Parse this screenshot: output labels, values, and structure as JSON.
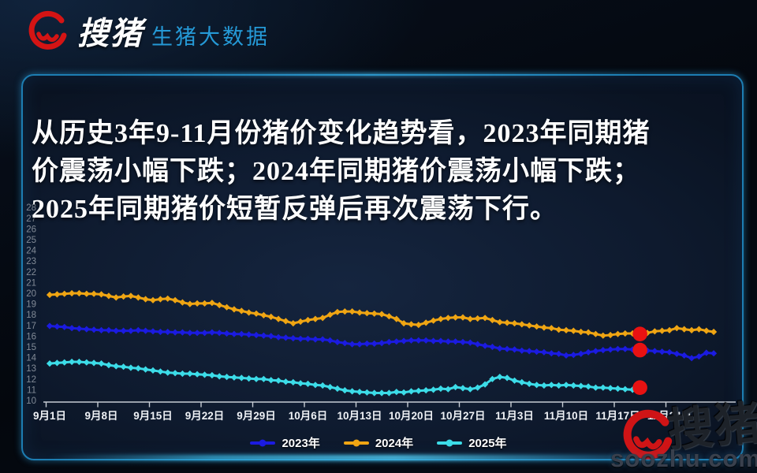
{
  "header": {
    "brand": "搜猪",
    "product": "生猪大数据"
  },
  "headline": {
    "lines": [
      "从历史3年9-11月份猪价变化趋势看，2023年同期猪",
      "价震荡小幅下跌；2024年同期猪价震荡小幅下跌；",
      "2025年同期猪价短暂反弹后再次震荡下行。"
    ]
  },
  "watermark": {
    "site": "soozhu.com",
    "brand": "搜猪"
  },
  "chart_data": {
    "type": "line",
    "x_unit": "day",
    "x_tick_labels": [
      "9月1日",
      "9月8日",
      "9月15日",
      "9月22日",
      "9月29日",
      "10月6日",
      "10月13日",
      "10月20日",
      "10月27日",
      "11月3日",
      "11月10日",
      "11月17日",
      "11月24日"
    ],
    "ylim": [
      10,
      28
    ],
    "y_tick_step": 1,
    "grid": false,
    "legend_position": "bottom-center",
    "axis_color": "#c6ccd4",
    "tick_label_color": "#eef1f5",
    "y_label_color": "#828a96",
    "highlight": {
      "color": "#e81212",
      "index": 80,
      "radius": 9.3
    },
    "series": [
      {
        "name": "2023年",
        "color": "#1b1be0",
        "values": [
          16.95,
          16.9,
          16.85,
          16.75,
          16.7,
          16.65,
          16.6,
          16.55,
          16.55,
          16.5,
          16.5,
          16.5,
          16.55,
          16.5,
          16.45,
          16.4,
          16.4,
          16.35,
          16.35,
          16.3,
          16.3,
          16.3,
          16.35,
          16.3,
          16.25,
          16.2,
          16.2,
          16.15,
          16.1,
          16.05,
          16.0,
          15.9,
          15.85,
          15.8,
          15.75,
          15.75,
          15.7,
          15.7,
          15.6,
          15.45,
          15.35,
          15.25,
          15.25,
          15.3,
          15.3,
          15.35,
          15.45,
          15.5,
          15.55,
          15.6,
          15.6,
          15.6,
          15.55,
          15.55,
          15.5,
          15.5,
          15.45,
          15.4,
          15.25,
          15.1,
          15.0,
          14.85,
          14.8,
          14.75,
          14.65,
          14.6,
          14.55,
          14.5,
          14.4,
          14.35,
          14.2,
          14.25,
          14.35,
          14.5,
          14.6,
          14.7,
          14.75,
          14.8,
          14.8,
          14.75,
          14.7,
          14.65,
          14.6,
          14.55,
          14.5,
          14.35,
          14.2,
          13.95,
          14.1,
          14.45,
          14.4
        ]
      },
      {
        "name": "2024年",
        "color": "#efa513",
        "values": [
          19.85,
          19.9,
          19.95,
          20.0,
          20.0,
          19.95,
          19.95,
          19.9,
          19.75,
          19.6,
          19.7,
          19.75,
          19.6,
          19.45,
          19.35,
          19.45,
          19.5,
          19.35,
          19.15,
          19.0,
          19.05,
          19.05,
          19.1,
          18.9,
          18.7,
          18.5,
          18.35,
          18.2,
          18.1,
          17.95,
          17.8,
          17.6,
          17.4,
          17.2,
          17.35,
          17.5,
          17.6,
          17.7,
          18.0,
          18.25,
          18.3,
          18.3,
          18.2,
          18.15,
          18.1,
          18.05,
          17.85,
          17.6,
          17.2,
          17.1,
          17.05,
          17.25,
          17.45,
          17.6,
          17.7,
          17.75,
          17.75,
          17.6,
          17.65,
          17.7,
          17.5,
          17.3,
          17.25,
          17.2,
          17.1,
          17.0,
          16.9,
          16.8,
          16.75,
          16.6,
          16.55,
          16.5,
          16.4,
          16.35,
          16.2,
          16.05,
          16.1,
          16.2,
          16.25,
          16.25,
          16.2,
          16.3,
          16.45,
          16.5,
          16.55,
          16.75,
          16.65,
          16.55,
          16.65,
          16.5,
          16.4
        ]
      },
      {
        "name": "2025年",
        "color": "#3cdce8",
        "values": [
          13.45,
          13.5,
          13.55,
          13.6,
          13.6,
          13.55,
          13.5,
          13.45,
          13.3,
          13.2,
          13.15,
          13.05,
          13.0,
          12.9,
          12.8,
          12.7,
          12.6,
          12.55,
          12.5,
          12.5,
          12.45,
          12.4,
          12.35,
          12.25,
          12.2,
          12.15,
          12.1,
          12.05,
          12.0,
          12.0,
          11.9,
          11.85,
          11.75,
          11.7,
          11.6,
          11.55,
          11.45,
          11.4,
          11.25,
          11.1,
          10.95,
          10.85,
          10.8,
          10.75,
          10.7,
          10.7,
          10.7,
          10.8,
          10.75,
          10.85,
          10.9,
          10.95,
          11.0,
          11.1,
          11.05,
          11.25,
          11.15,
          11.05,
          11.2,
          11.5,
          12.0,
          12.2,
          12.1,
          11.85,
          11.7,
          11.55,
          11.45,
          11.4,
          11.45,
          11.4,
          11.45,
          11.4,
          11.35,
          11.3,
          11.2,
          11.2,
          11.15,
          11.1,
          11.05,
          11.0,
          11.2
        ]
      }
    ]
  }
}
